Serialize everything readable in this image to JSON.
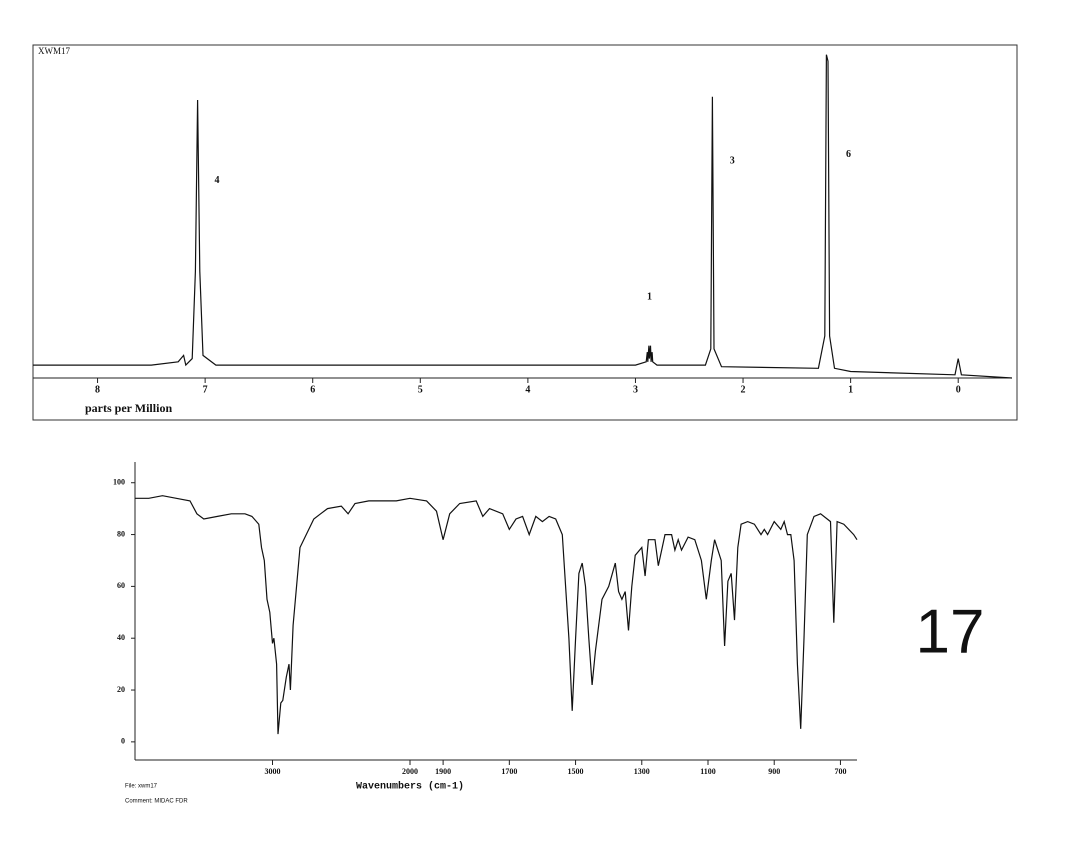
{
  "chart_data": [
    {
      "type": "line",
      "title": "XWM17",
      "x_label": "parts per Million",
      "x": [
        8.6,
        7.5,
        7.25,
        7.2,
        7.18,
        7.12,
        7.09,
        7.07,
        7.05,
        7.02,
        6.9,
        6.0,
        3.0,
        2.9,
        2.89,
        2.885,
        2.875,
        2.87,
        2.86,
        2.855,
        2.845,
        2.84,
        2.8,
        2.35,
        2.3,
        2.285,
        2.27,
        2.2,
        1.3,
        1.24,
        1.225,
        1.21,
        1.195,
        1.15,
        1.0,
        0.03,
        0.0,
        -0.03,
        -0.5
      ],
      "values": [
        1,
        1,
        2,
        4,
        1,
        3,
        30,
        83,
        30,
        4,
        1,
        1,
        1,
        2,
        5,
        2,
        7,
        3,
        7,
        2,
        5,
        2,
        1,
        1,
        6,
        84,
        6,
        0.5,
        0,
        10,
        97,
        95,
        10,
        0,
        -1,
        -2,
        3,
        -2,
        -3
      ],
      "xlim": [
        8.6,
        -0.5
      ],
      "ylim": [
        -3,
        100
      ],
      "xticks": [
        8,
        7,
        6,
        5,
        4,
        3,
        2,
        1,
        0
      ],
      "annotations": [
        {
          "text": "4",
          "x": 6.89,
          "y": 58
        },
        {
          "text": "1",
          "x": 2.87,
          "y": 22
        },
        {
          "text": "3",
          "x": 2.1,
          "y": 64
        },
        {
          "text": "6",
          "x": 1.02,
          "y": 66
        }
      ],
      "color": "#111111"
    },
    {
      "type": "line",
      "x_label": "Wavenumbers (cm-1)",
      "x": [
        4000,
        3900,
        3800,
        3700,
        3600,
        3550,
        3500,
        3400,
        3300,
        3200,
        3150,
        3100,
        3080,
        3060,
        3040,
        3020,
        3000,
        2990,
        2970,
        2960,
        2940,
        2925,
        2900,
        2880,
        2870,
        2850,
        2800,
        2700,
        2650,
        2600,
        2500,
        2450,
        2400,
        2300,
        2200,
        2100,
        2000,
        1950,
        1920,
        1900,
        1880,
        1850,
        1800,
        1780,
        1760,
        1720,
        1700,
        1680,
        1660,
        1640,
        1620,
        1600,
        1580,
        1560,
        1540,
        1520,
        1510,
        1500,
        1490,
        1480,
        1470,
        1460,
        1450,
        1440,
        1420,
        1400,
        1380,
        1370,
        1360,
        1350,
        1340,
        1330,
        1320,
        1300,
        1290,
        1280,
        1260,
        1250,
        1230,
        1210,
        1200,
        1190,
        1180,
        1160,
        1140,
        1120,
        1105,
        1090,
        1080,
        1060,
        1050,
        1040,
        1030,
        1020,
        1010,
        1000,
        980,
        960,
        940,
        930,
        920,
        900,
        880,
        870,
        860,
        850,
        840,
        830,
        820,
        810,
        800,
        780,
        760,
        740,
        730,
        720,
        710,
        690,
        660,
        650
      ],
      "values": [
        94,
        94,
        95,
        94,
        93,
        88,
        86,
        87,
        88,
        88,
        87,
        84,
        75,
        70,
        55,
        50,
        38,
        40,
        30,
        3,
        15,
        16,
        25,
        30,
        20,
        45,
        75,
        86,
        88,
        90,
        91,
        88,
        92,
        93,
        93,
        93,
        94,
        93,
        89,
        78,
        88,
        92,
        93,
        87,
        90,
        88,
        82,
        86,
        87,
        80,
        87,
        85,
        87,
        86,
        80,
        40,
        12,
        40,
        65,
        69,
        60,
        40,
        22,
        35,
        55,
        60,
        69,
        58,
        55,
        58,
        43,
        60,
        72,
        75,
        64,
        78,
        78,
        68,
        80,
        80,
        74,
        78,
        74,
        79,
        78,
        70,
        55,
        70,
        78,
        70,
        37,
        62,
        65,
        47,
        75,
        84,
        85,
        84,
        80,
        82,
        80,
        85,
        82,
        85,
        80,
        80,
        70,
        30,
        5,
        40,
        80,
        87,
        88,
        86,
        85,
        46,
        85,
        84,
        80,
        78
      ],
      "xlim": [
        4000,
        650
      ],
      "x_break": 2000,
      "xticks": [
        3000,
        2000,
        1900,
        1700,
        1500,
        1300,
        1100,
        900,
        700
      ],
      "ylim": [
        -7,
        108
      ],
      "yticks": [
        0,
        20,
        40,
        60,
        80,
        100
      ],
      "color": "#111111"
    }
  ],
  "file_label": "File: xwm17",
  "comment": "Comment: MIDAC FDR",
  "sample_number": "17"
}
